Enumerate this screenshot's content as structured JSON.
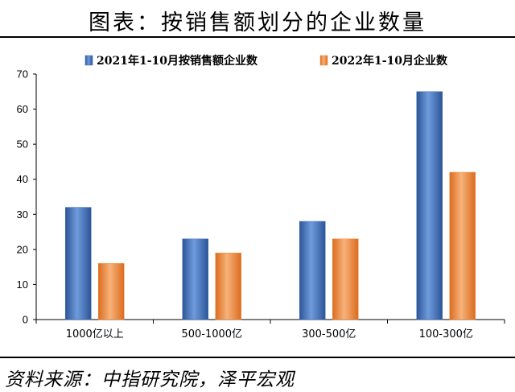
{
  "header": {
    "title": "图表：按销售额划分的企业数量"
  },
  "footer": {
    "source": "资料来源：中指研究院，泽平宏观"
  },
  "colors": {
    "series_1": "#3f6fb9",
    "series_2": "#ee8a3a"
  },
  "chart_data": {
    "type": "bar",
    "categories": [
      "1000亿以上",
      "500-1000亿",
      "300-500亿",
      "100-300亿"
    ],
    "series": [
      {
        "name": "2021年1-10月按销售额企业数",
        "values": [
          32,
          23,
          28,
          65
        ]
      },
      {
        "name": "2022年1-10月企业数",
        "values": [
          16,
          19,
          23,
          42
        ]
      }
    ],
    "ylim": [
      0,
      70
    ],
    "yticks": [
      0,
      10,
      20,
      30,
      40,
      50,
      60,
      70
    ],
    "grid": false,
    "legend_position": "top"
  }
}
